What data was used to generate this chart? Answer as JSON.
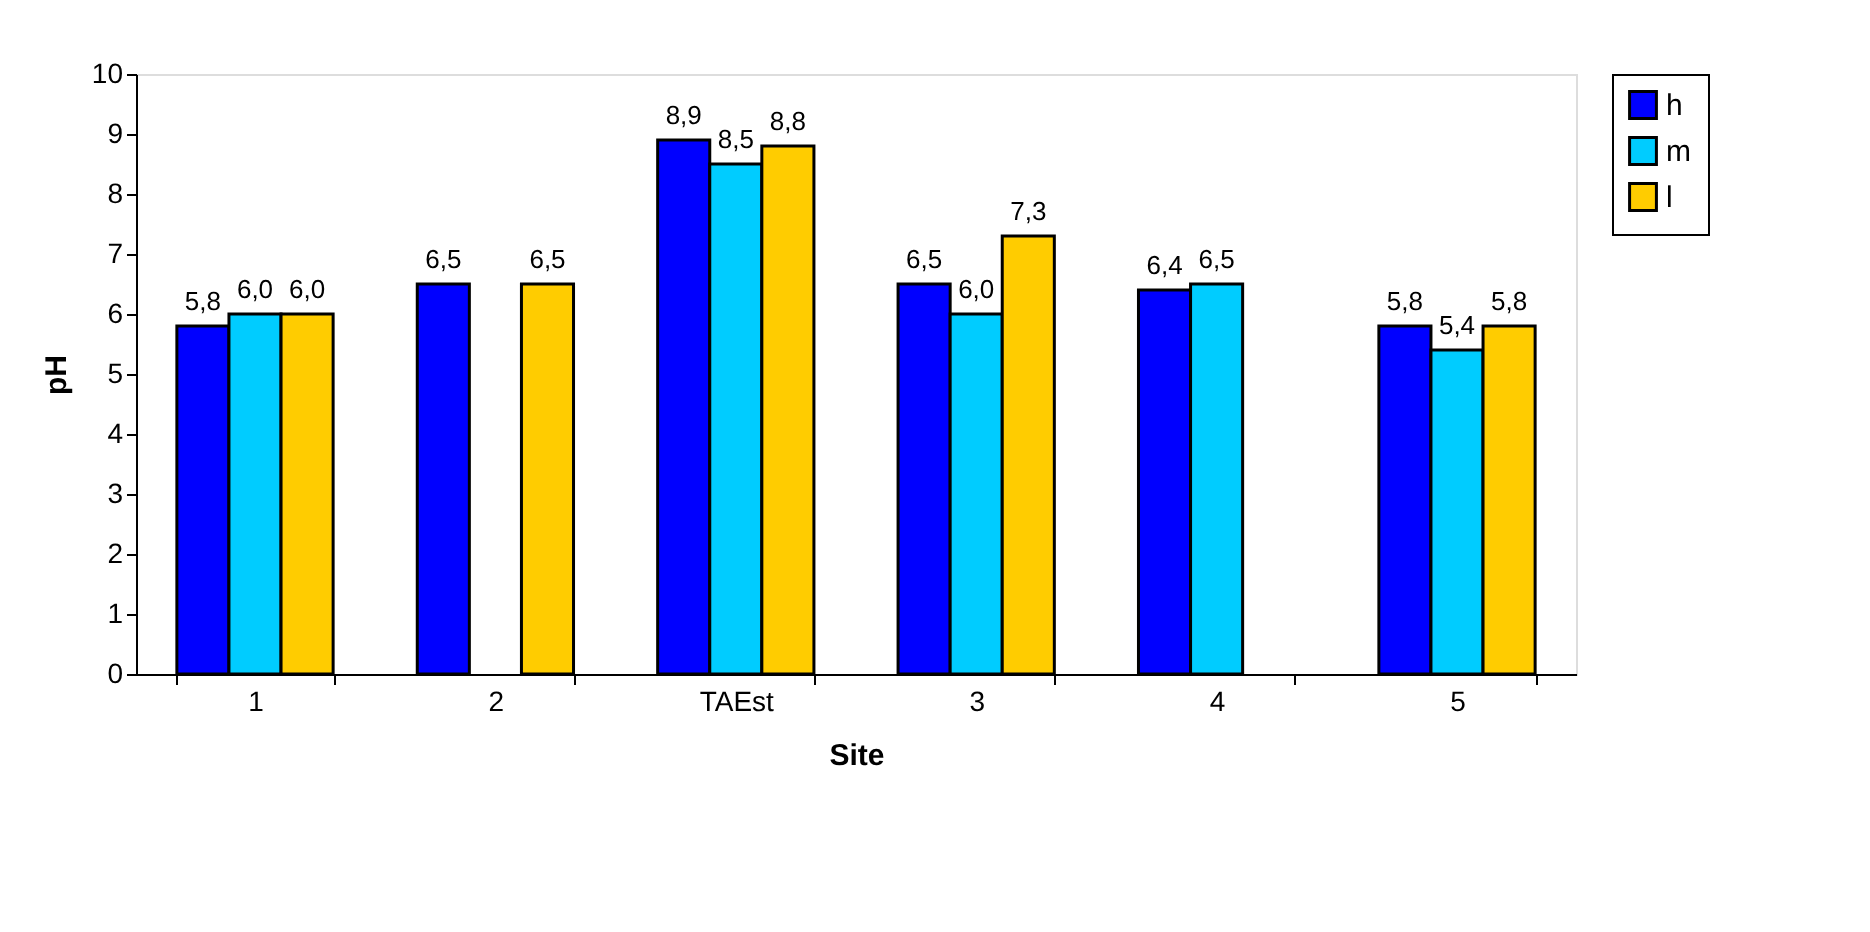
{
  "chart_data": {
    "type": "bar",
    "xlabel": "Site",
    "ylabel": "pH",
    "categories": [
      "1",
      "2",
      "TAEst",
      "3",
      "4",
      "5"
    ],
    "series": [
      {
        "name": "h",
        "color": "#0000ff",
        "values": [
          5.8,
          6.5,
          8.9,
          6.5,
          6.4,
          5.8
        ],
        "value_labels": [
          "5,8",
          "6,5",
          "8,9",
          "6,5",
          "6,4",
          "5,8"
        ]
      },
      {
        "name": "m",
        "color": "#00ccff",
        "values": [
          6.0,
          null,
          8.5,
          6.0,
          6.5,
          5.4
        ],
        "value_labels": [
          "6,0",
          null,
          "8,5",
          "6,0",
          "6,5",
          "5,4"
        ]
      },
      {
        "name": "l",
        "color": "#ffcc00",
        "values": [
          6.0,
          6.5,
          8.8,
          7.3,
          null,
          5.8
        ],
        "value_labels": [
          "6,0",
          "6,5",
          "8,8",
          "7,3",
          null,
          "5,8"
        ]
      }
    ],
    "ylim": [
      0,
      10
    ],
    "yticks": [
      0,
      1,
      2,
      3,
      4,
      5,
      6,
      7,
      8,
      9,
      10
    ],
    "grid": false,
    "legend": "right"
  }
}
